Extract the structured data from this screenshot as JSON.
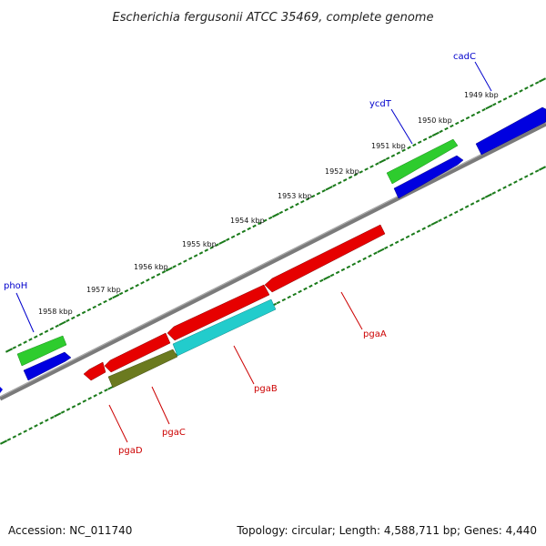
{
  "title": "Escherichia fergusonii ATCC 35469, complete genome",
  "footer": {
    "accession": "Accession: NC_011740",
    "summary": "Topology: circular; Length: 4,588,711 bp; Genes: 4,440"
  },
  "colors": {
    "backbone": "#808080",
    "tick": "#1a7a1a",
    "forward_cds": "#0000e0",
    "reverse_cds": "#e60000",
    "gene_green": "#33cc33",
    "gene_cyan": "#22cccc",
    "gene_olive": "#6b7a1f",
    "forward_label": "#0000cc",
    "reverse_label": "#cc0000"
  },
  "kbp_labels": [
    "1949 kbp",
    "1950 kbp",
    "1951 kbp",
    "1952 kbp",
    "1953 kbp",
    "1954 kbp",
    "1955 kbp",
    "1956 kbp",
    "1957 kbp",
    "1958 kbp"
  ],
  "genes": [
    {
      "name": "cadC",
      "strand": "forward"
    },
    {
      "name": "ycdT",
      "strand": "forward"
    },
    {
      "name": "phoH",
      "strand": "forward"
    },
    {
      "name": "pgaA",
      "strand": "reverse"
    },
    {
      "name": "pgaB",
      "strand": "reverse"
    },
    {
      "name": "pgaC",
      "strand": "reverse"
    },
    {
      "name": "pgaD",
      "strand": "reverse"
    }
  ]
}
